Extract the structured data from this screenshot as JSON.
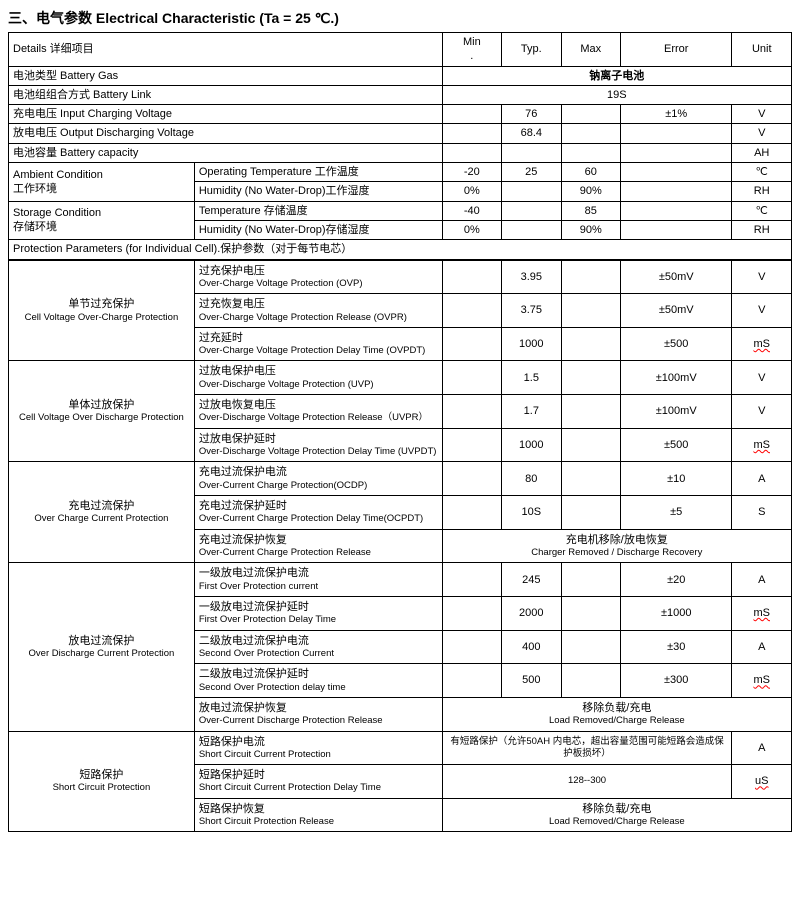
{
  "heading": "三、电气参数 Electrical Characteristic (Ta = 25 ℃.)",
  "headers": {
    "details": "Details 详细项目",
    "min": "Min",
    "typ": "Typ.",
    "max": "Max",
    "error": "Error",
    "unit": "Unit"
  },
  "rows": {
    "battery_gas": {
      "label": "电池类型  Battery Gas",
      "value": "钠离子电池"
    },
    "battery_link": {
      "label": "电池组组合方式  Battery Link",
      "value": "19S"
    },
    "charging_voltage": {
      "label": "充电电压  Input Charging Voltage",
      "typ": "76",
      "error": "±1%",
      "unit": "V"
    },
    "discharging_voltage": {
      "label": "放电电压  Output Discharging Voltage",
      "typ": "68.4",
      "unit": "V"
    },
    "capacity": {
      "label": "电池容量  Battery capacity",
      "unit": "AH"
    },
    "ambient": {
      "label_cn": "Ambient Condition",
      "label_en": "工作环境",
      "temp": {
        "label": "Operating Temperature 工作温度",
        "min": "-20",
        "typ": "25",
        "max": "60",
        "unit": "℃"
      },
      "humidity": {
        "label": "Humidity (No Water-Drop)工作湿度",
        "min": "0%",
        "max": "90%",
        "unit": "RH"
      }
    },
    "storage": {
      "label_cn": "Storage Condition",
      "label_en": "存储环境",
      "temp": {
        "label": "Temperature 存储温度",
        "min": "-40",
        "max": "85",
        "unit": "℃"
      },
      "humidity": {
        "label": "Humidity (No Water-Drop)存储湿度",
        "min": "0%",
        "max": "90%",
        "unit": "RH"
      }
    }
  },
  "protection_header": "Protection Parameters (for Individual Cell).保护参数（对于每节电芯）",
  "prot": {
    "overcharge": {
      "group_cn": "单节过充保护",
      "group_en": "Cell Voltage Over-Charge Protection",
      "rows": [
        {
          "cn": "过充保护电压",
          "en": "Over-Charge Voltage Protection (OVP)",
          "typ": "3.95",
          "error": "±50mV",
          "unit": "V"
        },
        {
          "cn": "过充恢复电压",
          "en": "Over-Charge Voltage Protection Release (OVPR)",
          "typ": "3.75",
          "error": "±50mV",
          "unit": "V"
        },
        {
          "cn": "过充延时",
          "en": "Over-Charge Voltage Protection Delay Time (OVPDT)",
          "typ": "1000",
          "error": "±500",
          "unit": "mS",
          "unit_wavy": true
        }
      ]
    },
    "overdischarge": {
      "group_cn": "单体过放保护",
      "group_en": "Cell Voltage Over Discharge Protection",
      "rows": [
        {
          "cn": "过放电保护电压",
          "en": "Over-Discharge Voltage Protection (UVP)",
          "typ": "1.5",
          "error": "±100mV",
          "unit": "V"
        },
        {
          "cn": "过放电恢复电压",
          "en": "Over-Discharge Voltage Protection Release（UVPR）",
          "typ": "1.7",
          "error": "±100mV",
          "unit": "V"
        },
        {
          "cn": "过放电保护延时",
          "en": "Over-Discharge Voltage Protection Delay Time (UVPDT)",
          "typ": "1000",
          "error": "±500",
          "unit": "mS",
          "unit_wavy": true
        }
      ]
    },
    "occ": {
      "group_cn": "充电过流保护",
      "group_en": "Over Charge Current Protection",
      "rows": [
        {
          "cn": "充电过流保护电流",
          "en": "Over-Current Charge Protection(OCDP)",
          "typ": "80",
          "error": "±10",
          "unit": "A"
        },
        {
          "cn": "充电过流保护延时",
          "en": "Over-Current Charge Protection Delay Time(OCPDT)",
          "typ": "10S",
          "error": "±5",
          "unit": "S"
        }
      ],
      "release": {
        "cn": "充电过流保护恢复",
        "en": "Over-Current Charge Protection Release",
        "span_cn": "充电机移除/放电恢复",
        "span_en": "Charger Removed / Discharge Recovery"
      }
    },
    "odc": {
      "group_cn": "放电过流保护",
      "group_en": "Over Discharge Current Protection",
      "rows": [
        {
          "cn": "一级放电过流保护电流",
          "en": "First Over Protection current",
          "typ": "245",
          "error": "±20",
          "unit": "A"
        },
        {
          "cn": "一级放电过流保护延时",
          "en": "First Over Protection Delay Time",
          "typ": "2000",
          "error": "±1000",
          "unit": "mS",
          "unit_wavy": true
        },
        {
          "cn": "二级放电过流保护电流",
          "en": "Second Over Protection Current",
          "typ": "400",
          "error": "±30",
          "unit": "A"
        },
        {
          "cn": "二级放电过流保护延时",
          "en": "Second Over Protection delay time",
          "typ": "500",
          "error": "±300",
          "unit": "mS",
          "unit_wavy": true
        }
      ],
      "release": {
        "cn": "放电过流保护恢复",
        "en": "Over-Current Discharge Protection Release",
        "span_cn": "移除负载/充电",
        "span_en": "Load Removed/Charge Release"
      }
    },
    "short": {
      "group_cn": "短路保护",
      "group_en": "Short Circuit Protection",
      "rows": [
        {
          "cn": "短路保护电流",
          "en": "Short Circuit Current Protection",
          "span_text": "有短路保护（允许50AH 内电芯，超出容量范围可能短路会造成保护板损坏）",
          "unit": "A"
        },
        {
          "cn": "短路保护延时",
          "en": "Short Circuit Current Protection Delay Time",
          "span_text": "128--300",
          "unit": "uS",
          "unit_wavy": true
        }
      ],
      "release": {
        "cn": "短路保护恢复",
        "en": "Short Circuit Protection Release",
        "span_cn": "移除负载/充电",
        "span_en": "Load Removed/Charge Release"
      }
    }
  }
}
